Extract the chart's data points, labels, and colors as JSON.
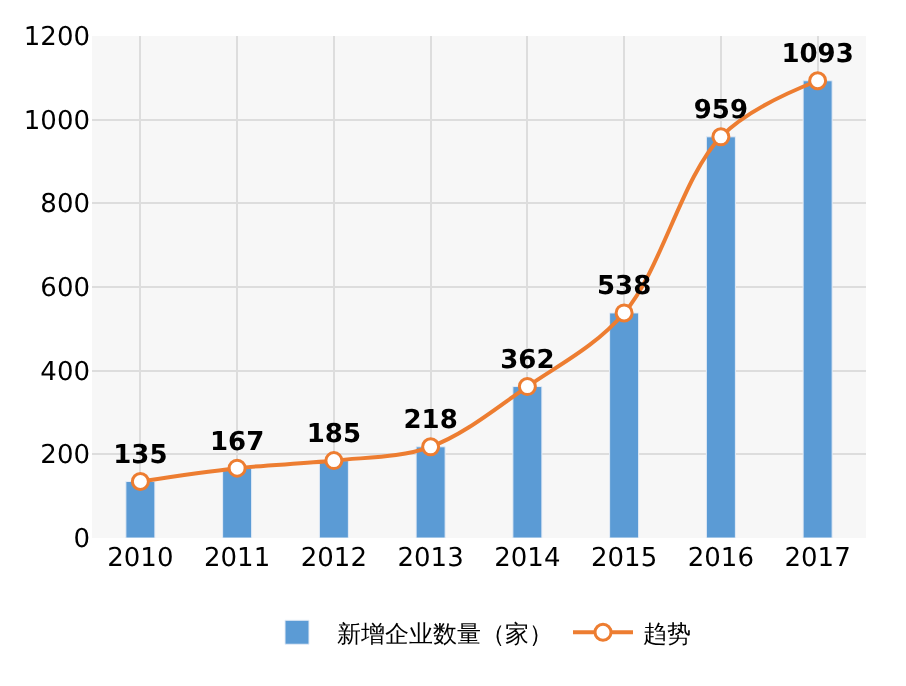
{
  "chart_data": {
    "type": "bar",
    "categories": [
      "2010",
      "2011",
      "2012",
      "2013",
      "2014",
      "2015",
      "2016",
      "2017"
    ],
    "series": [
      {
        "name": "新增企业数量（家）",
        "color": "#5b9bd5",
        "values": [
          135,
          167,
          185,
          218,
          362,
          538,
          959,
          1093
        ]
      },
      {
        "name": "趋势",
        "type": "line",
        "color": "#ed7d31",
        "marker": "circle",
        "values": [
          135,
          167,
          185,
          218,
          362,
          538,
          959,
          1093
        ],
        "value_labels": [
          "135",
          "167",
          "185",
          "218",
          "362",
          "538",
          "959",
          "1093"
        ]
      }
    ],
    "ylim": [
      0,
      1200
    ],
    "yticks": [
      0,
      200,
      400,
      600,
      800,
      1000,
      1200
    ],
    "grid": true,
    "legend": "bottom"
  }
}
